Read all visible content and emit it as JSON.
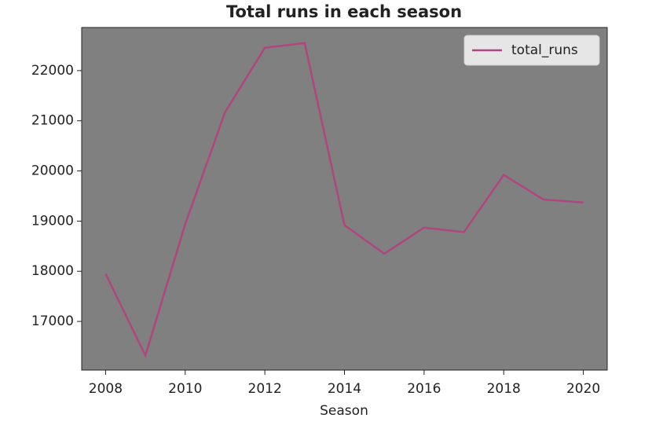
{
  "chart_data": {
    "type": "line",
    "title": "Total runs in each season",
    "xlabel": "Season",
    "x": [
      2008,
      2009,
      2010,
      2011,
      2012,
      2013,
      2014,
      2015,
      2016,
      2017,
      2018,
      2019,
      2020
    ],
    "series": [
      {
        "name": "total_runs",
        "color": "#b0457f",
        "values": [
          17950,
          16320,
          18940,
          21170,
          22456,
          22550,
          18920,
          18350,
          18870,
          18780,
          19920,
          19430,
          19370
        ]
      }
    ],
    "xlim": [
      2007.4,
      2020.6
    ],
    "xticks": [
      2008,
      2010,
      2012,
      2014,
      2016,
      2018,
      2020
    ],
    "ylim": [
      16030,
      22860
    ],
    "yticks": [
      17000,
      18000,
      19000,
      20000,
      21000,
      22000
    ],
    "grid": false,
    "legend": "upper right",
    "background": "#808080"
  }
}
